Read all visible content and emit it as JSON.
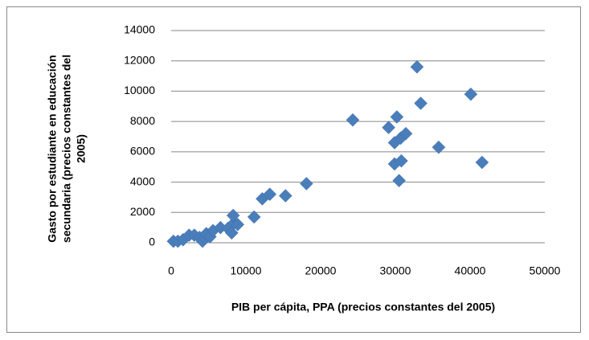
{
  "chart_data": {
    "type": "scatter",
    "x_label": "PIB per cápita, PPA (precios constantes del 2005)",
    "y_label": [
      "Gasto por estudiante en educación",
      "secundaria (precios constantes del",
      "2005)"
    ],
    "x": [
      300,
      900,
      1600,
      2400,
      3100,
      3800,
      4200,
      4700,
      5200,
      5600,
      6600,
      7600,
      8100,
      8400,
      8300,
      8900,
      11100,
      12200,
      13200,
      15300,
      18100,
      24300,
      29100,
      29900,
      30200,
      30700,
      31400,
      29900,
      30800,
      30500,
      32900,
      33400,
      35800,
      40100,
      41600
    ],
    "values": [
      100,
      100,
      200,
      500,
      500,
      350,
      100,
      600,
      400,
      800,
      1000,
      950,
      650,
      1300,
      1800,
      1200,
      1700,
      2900,
      3200,
      3100,
      3900,
      8100,
      7600,
      6600,
      8300,
      6900,
      7200,
      5200,
      5400,
      4100,
      11600,
      9200,
      6300,
      9800,
      5300
    ],
    "color": "#4a7ebb",
    "xlim": [
      0,
      50000
    ],
    "xticks": [
      0,
      10000,
      20000,
      30000,
      40000,
      50000
    ],
    "ylim": [
      0,
      14000
    ],
    "yticks": [
      0,
      2000,
      4000,
      6000,
      8000,
      10000,
      12000,
      14000
    ],
    "grid": true
  }
}
